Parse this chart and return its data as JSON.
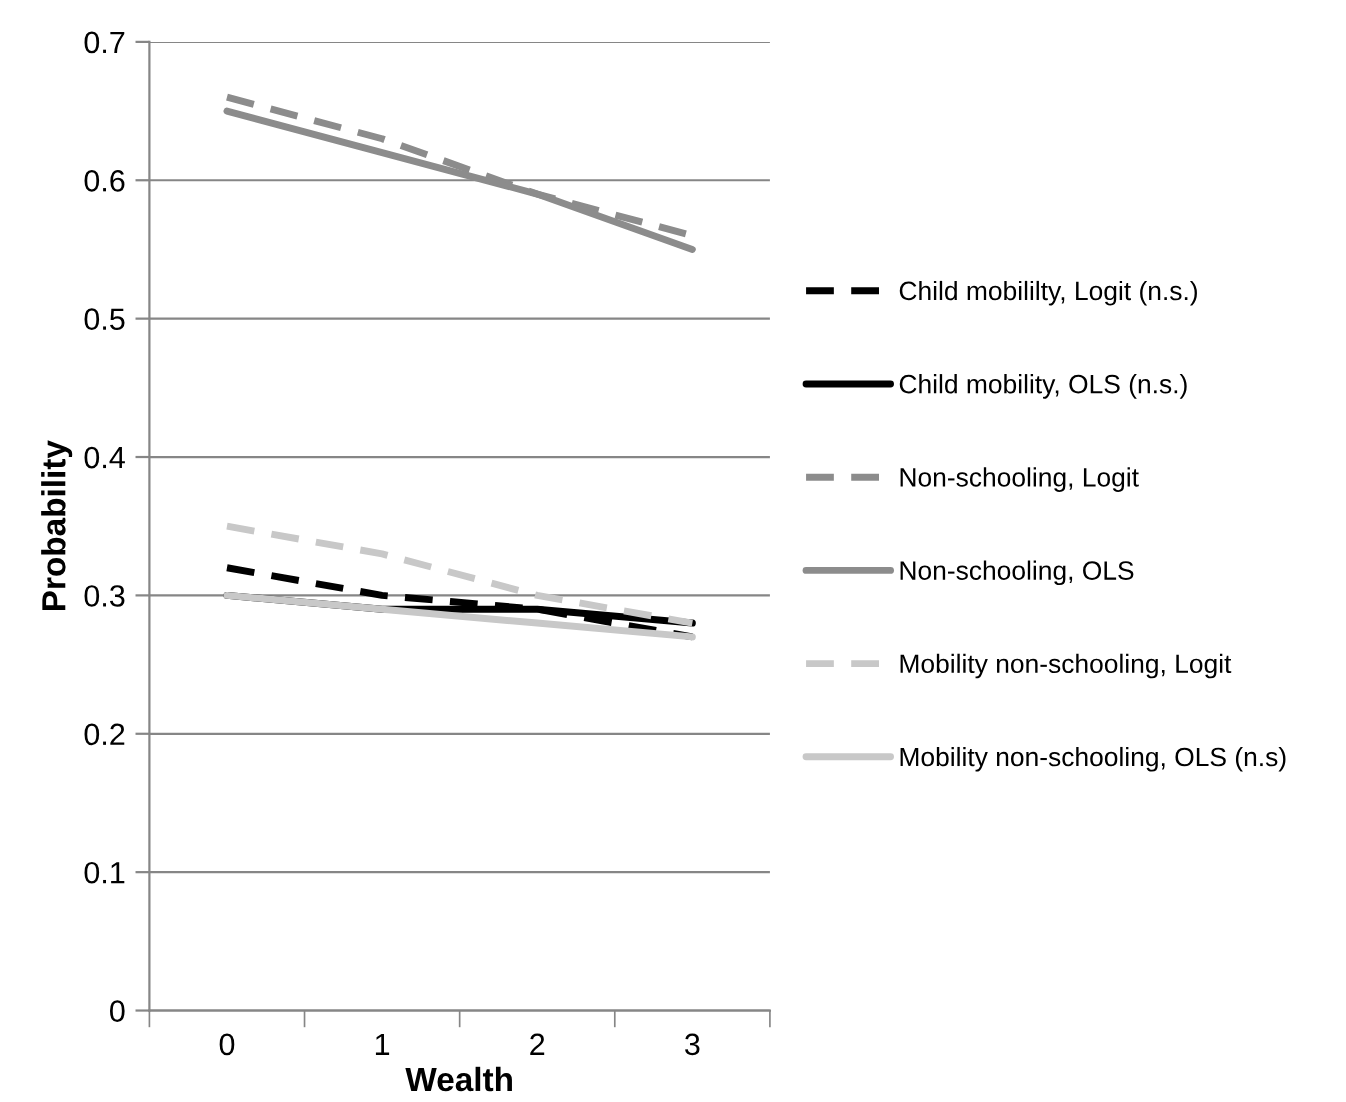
{
  "chart_data": {
    "type": "line",
    "xlabel": "Wealth",
    "ylabel": "Probability",
    "categories": [
      "0",
      "1",
      "2",
      "3"
    ],
    "series": [
      {
        "name": "Child mobililty, Logit (n.s.)",
        "color": "#000000",
        "line_style": "dashed",
        "values": [
          0.32,
          0.3,
          0.29,
          0.27
        ]
      },
      {
        "name": "Child mobility, OLS (n.s.)",
        "color": "#000000",
        "line_style": "solid",
        "values": [
          0.3,
          0.29,
          0.29,
          0.28
        ]
      },
      {
        "name": "Non-schooling, Logit",
        "color": "#8c8c8c",
        "line_style": "dashed",
        "values": [
          0.66,
          0.63,
          0.59,
          0.56
        ]
      },
      {
        "name": "Non-schooling, OLS",
        "color": "#8c8c8c",
        "line_style": "solid",
        "values": [
          0.65,
          0.62,
          0.59,
          0.55
        ]
      },
      {
        "name": "Mobility non-schooling, Logit",
        "color": "#c8c8c8",
        "line_style": "dashed",
        "values": [
          0.35,
          0.33,
          0.3,
          0.28
        ]
      },
      {
        "name": "Mobility non-schooling, OLS (n.s)",
        "color": "#c8c8c8",
        "line_style": "solid",
        "values": [
          0.3,
          0.29,
          0.28,
          0.27
        ]
      }
    ],
    "ylim": [
      0,
      0.7
    ],
    "yticks": [
      0,
      0.1,
      0.2,
      0.3,
      0.4,
      0.5,
      0.6,
      0.7
    ],
    "grid": "y",
    "legend": "right",
    "marker": "none"
  }
}
